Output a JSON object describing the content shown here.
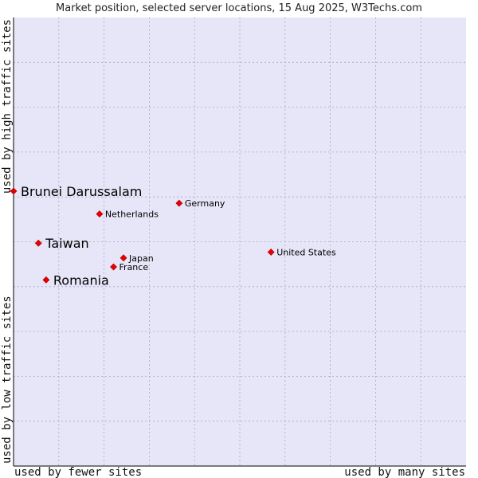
{
  "chart_data": {
    "type": "scatter",
    "title": "Market position, selected server locations, 15 Aug 2025, W3Techs.com",
    "xlabel_left": "used by fewer sites",
    "xlabel_right": "used by many sites",
    "ylabel_top": "used by high traffic sites",
    "ylabel_bottom": "used by low traffic sites",
    "xlim": [
      0,
      100
    ],
    "ylim": [
      0,
      100
    ],
    "grid": true,
    "colors": {
      "plot_bg": "#e6e6f8",
      "grid": "#a8a8c0",
      "point": "#e60000",
      "axis": "#000000"
    },
    "points": [
      {
        "name": "Brunei Darussalam",
        "x": 0.0,
        "y": 61.3,
        "emphasis": true
      },
      {
        "name": "Taiwan",
        "x": 5.5,
        "y": 49.7,
        "emphasis": true
      },
      {
        "name": "Romania",
        "x": 7.2,
        "y": 41.5,
        "emphasis": true
      },
      {
        "name": "Netherlands",
        "x": 19.0,
        "y": 56.2,
        "emphasis": false
      },
      {
        "name": "Germany",
        "x": 36.6,
        "y": 58.6,
        "emphasis": false
      },
      {
        "name": "Japan",
        "x": 24.3,
        "y": 46.4,
        "emphasis": false
      },
      {
        "name": "France",
        "x": 22.1,
        "y": 44.4,
        "emphasis": false
      },
      {
        "name": "United States",
        "x": 56.9,
        "y": 47.7,
        "emphasis": false
      }
    ]
  }
}
